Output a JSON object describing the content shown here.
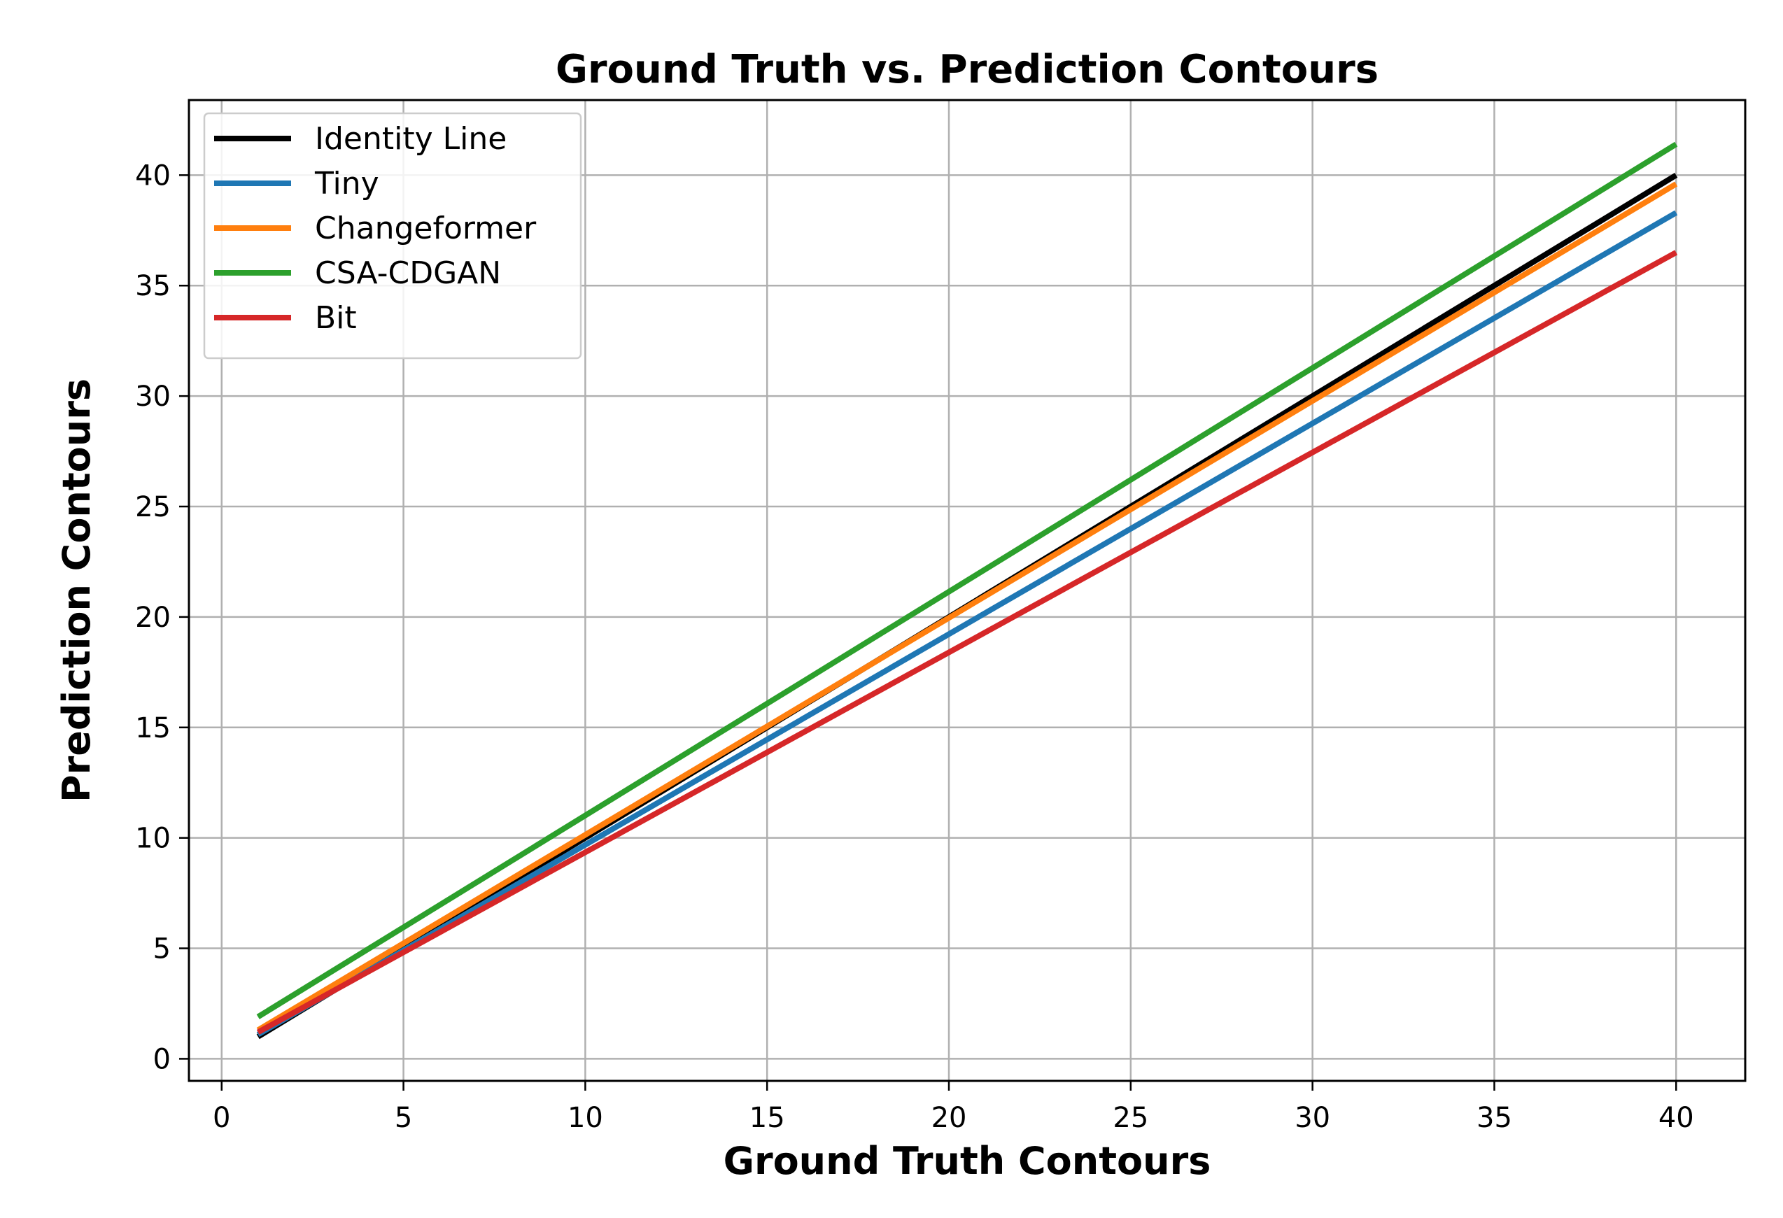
{
  "chart_data": {
    "type": "line",
    "title": "Ground Truth vs. Prediction Contours",
    "xlabel": "Ground Truth Contours",
    "ylabel": "Prediction Contours",
    "xlim": [
      -0.9,
      41.9
    ],
    "ylim": [
      -1.0,
      43.4
    ],
    "x_ticks": [
      0,
      5,
      10,
      15,
      20,
      25,
      30,
      35,
      40
    ],
    "y_ticks": [
      0,
      5,
      10,
      15,
      20,
      25,
      30,
      35,
      40
    ],
    "grid": true,
    "legend_position": "top-left",
    "series": [
      {
        "name": "Identity Line",
        "color": "#000000",
        "x": [
          1,
          40
        ],
        "y": [
          1.0,
          40.0
        ]
      },
      {
        "name": "Tiny",
        "color": "#1f77b4",
        "x": [
          1,
          40
        ],
        "y": [
          1.1,
          38.3
        ]
      },
      {
        "name": "Changeformer",
        "color": "#ff7f0e",
        "x": [
          1,
          40
        ],
        "y": [
          1.3,
          39.6
        ]
      },
      {
        "name": "CSA-CDGAN",
        "color": "#2ca02c",
        "x": [
          1,
          40
        ],
        "y": [
          1.9,
          41.4
        ]
      },
      {
        "name": "Bit",
        "color": "#d62728",
        "x": [
          1,
          40
        ],
        "y": [
          1.2,
          36.5
        ]
      }
    ]
  }
}
